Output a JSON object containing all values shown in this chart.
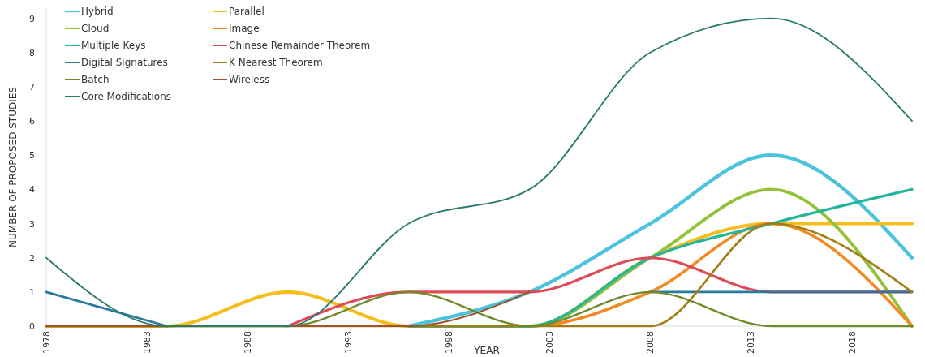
{
  "chart_data": {
    "type": "line",
    "xlabel": "YEAR",
    "ylabel": "NUMBER OF PROPOSED STUDIES",
    "x": [
      1978,
      1984,
      1990,
      1996,
      2002,
      2008,
      2014,
      2021
    ],
    "xlim": [
      1978,
      2021
    ],
    "xticks": [
      1978,
      1983,
      1988,
      1993,
      1998,
      2003,
      2008,
      2013,
      2018
    ],
    "ylim": [
      0,
      9.3
    ],
    "yticks": [
      0,
      1,
      2,
      3,
      4,
      5,
      6,
      7,
      8,
      9
    ],
    "grid": false,
    "legend": "top left",
    "line_style": "solid",
    "marker": "none",
    "series": [
      {
        "name": "Hybrid",
        "color": "#4bc3dc",
        "values": [
          null,
          null,
          null,
          0,
          1,
          3,
          5,
          2
        ]
      },
      {
        "name": "Parallel",
        "color": "#f5be1e",
        "values": [
          0,
          0,
          1,
          0,
          0,
          2,
          3,
          3
        ]
      },
      {
        "name": "Cloud",
        "color": "#94c13c",
        "values": [
          null,
          null,
          null,
          0,
          0,
          2,
          4,
          0
        ]
      },
      {
        "name": "Image",
        "color": "#f28a23",
        "values": [
          null,
          null,
          null,
          0,
          0,
          1,
          3,
          0
        ]
      },
      {
        "name": "Multiple Keys",
        "color": "#24b59e",
        "values": [
          null,
          null,
          null,
          0,
          0,
          2,
          3,
          4
        ]
      },
      {
        "name": "Chinese Remainder Theorem",
        "color": "#e04a56",
        "values": [
          null,
          null,
          0,
          1,
          1,
          2,
          1,
          1
        ]
      },
      {
        "name": "Digital Signatures",
        "color": "#2a7a9e",
        "values": [
          1,
          0,
          null,
          null,
          null,
          1,
          1,
          1
        ]
      },
      {
        "name": "K Nearest Theorem",
        "color": "#a27d14",
        "values": [
          0,
          0,
          0,
          0,
          0,
          0,
          3,
          1
        ]
      },
      {
        "name": "Batch",
        "color": "#6e8a2a",
        "values": [
          0,
          0,
          0,
          1,
          0,
          1,
          0,
          0
        ]
      },
      {
        "name": "Wireless",
        "color": "#a0522d",
        "values": [
          0,
          0,
          0,
          0,
          1,
          null,
          null,
          null
        ]
      },
      {
        "name": "Core Modifications",
        "color": "#2a7b6e",
        "values": [
          2,
          0,
          0,
          3,
          4,
          8,
          9,
          6
        ]
      }
    ]
  }
}
